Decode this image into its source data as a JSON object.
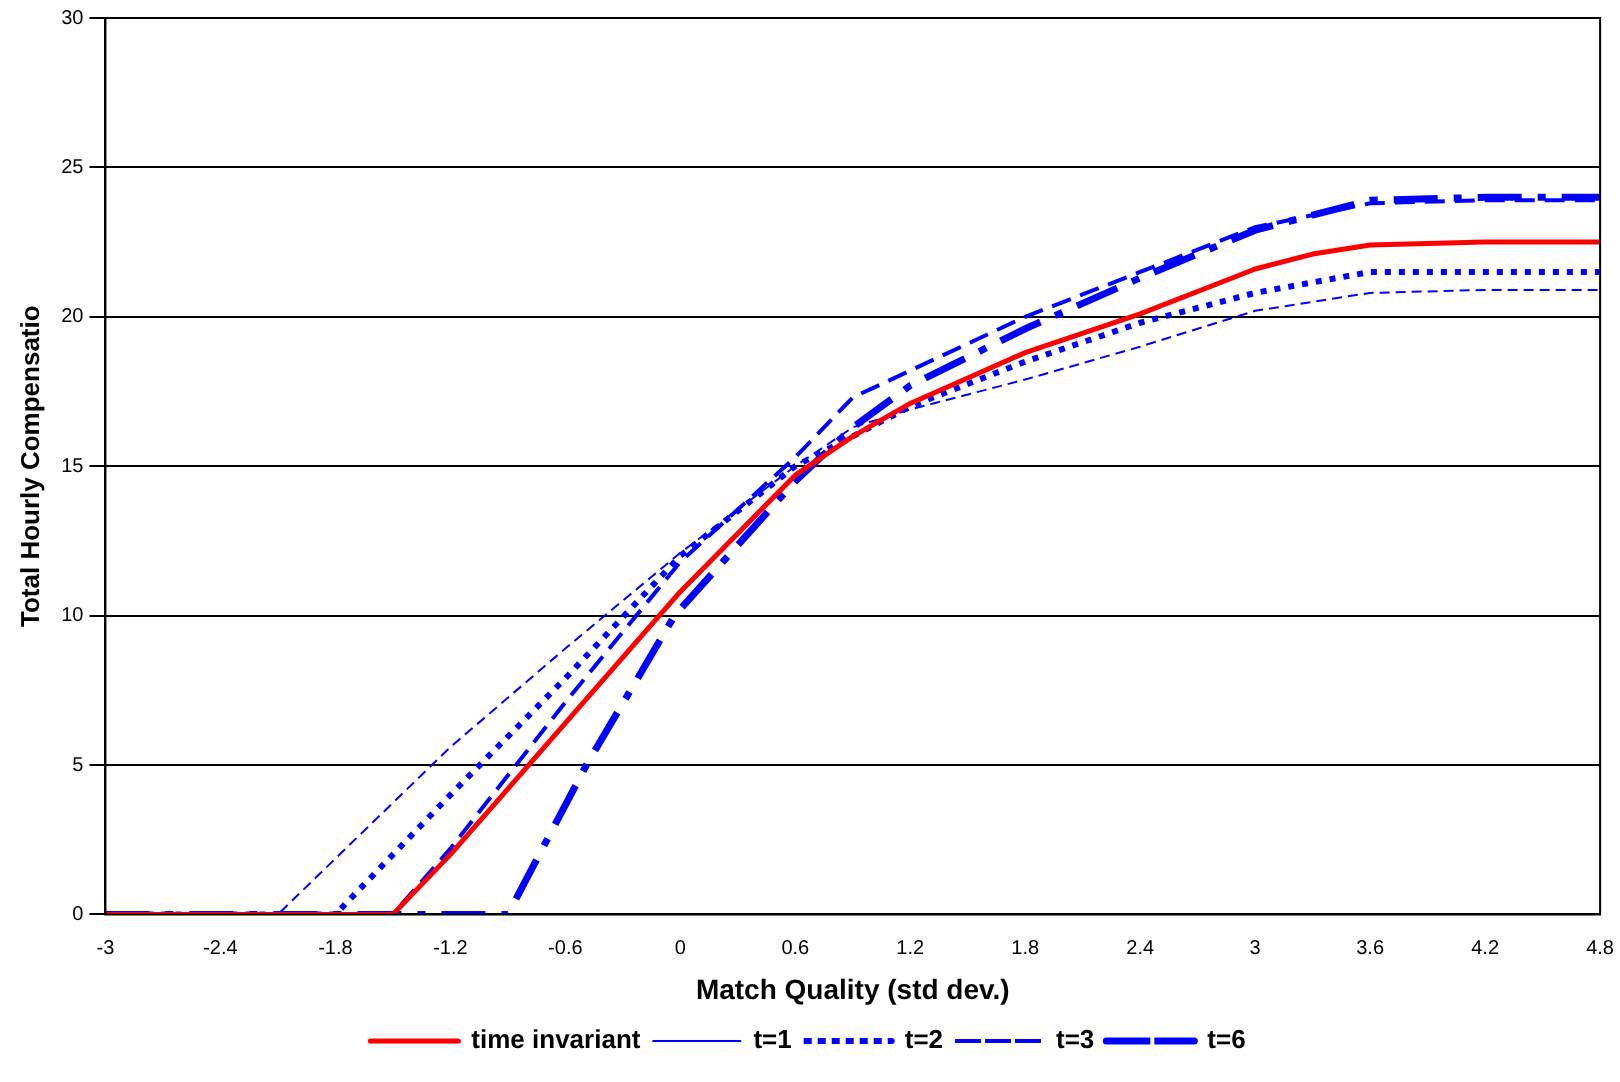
{
  "chart_data": {
    "type": "line",
    "xlabel": "Match Quality (std dev.)",
    "ylabel": "Total Hourly Compensatio",
    "xlim": [
      -3,
      4.8
    ],
    "xticks": [
      -3,
      -2.4,
      -1.8,
      -1.2,
      -0.6,
      0,
      0.6,
      1.2,
      1.8,
      2.4,
      3,
      3.6,
      4.2,
      4.8
    ],
    "ylim": [
      0,
      30
    ],
    "yticks": [
      0,
      5,
      10,
      15,
      20,
      25,
      30
    ],
    "grid": "y",
    "legend": "bottom",
    "marker": "none",
    "series": [
      {
        "name": "time invariant",
        "color": "#ff0000",
        "line_style": "solid",
        "x": [
          -3,
          -1.5,
          -1.2,
          -0.6,
          0,
          0.6,
          0.9,
          1.2,
          1.8,
          2.4,
          3,
          3.3,
          3.6,
          4.2,
          4.8
        ],
        "values": [
          0,
          0,
          2,
          6.4,
          10.8,
          14.7,
          16,
          17.1,
          18.8,
          20.1,
          21.6,
          22.1,
          22.4,
          22.5,
          22.5
        ]
      },
      {
        "name": "t=1",
        "color": "#0000ff",
        "line_style": "dashed",
        "x": [
          -3,
          -2.1,
          -1.2,
          -0.6,
          0,
          0.6,
          0.9,
          1.2,
          1.8,
          2.4,
          3,
          3.6,
          4.2,
          4.8
        ],
        "values": [
          0,
          0,
          5.6,
          8.9,
          12.1,
          15,
          16.3,
          16.9,
          17.9,
          19,
          20.2,
          20.8,
          20.9,
          20.9
        ]
      },
      {
        "name": "t=2",
        "color": "#0000ff",
        "line_style": "dotted",
        "x": [
          -3,
          -1.8,
          -1.2,
          -0.6,
          0,
          0.6,
          1.2,
          1.8,
          2.4,
          3,
          3.6,
          4.2,
          4.8
        ],
        "values": [
          0,
          0,
          4,
          7.9,
          12,
          15,
          17,
          18.5,
          19.8,
          20.8,
          21.5,
          21.5,
          21.5
        ]
      },
      {
        "name": "t=3",
        "color": "#0000ff",
        "line_style": "dashed",
        "x": [
          -3,
          -1.5,
          -1.2,
          -0.6,
          0,
          0.6,
          0.9,
          1.2,
          1.8,
          2.4,
          3,
          3.6,
          4.2,
          4.8
        ],
        "values": [
          0,
          0,
          2.2,
          7.1,
          11.8,
          15.3,
          17.3,
          18.2,
          20,
          21.5,
          23,
          23.8,
          23.9,
          23.9
        ]
      },
      {
        "name": "t=6",
        "color": "#0000ff",
        "line_style": "dashed",
        "x": [
          -3,
          -0.9,
          -0.49,
          -0.03,
          0.6,
          0.9,
          1.2,
          1.8,
          2.4,
          3,
          3.6,
          4.2,
          4.8
        ],
        "values": [
          0,
          0,
          5,
          10,
          14.5,
          16.3,
          17.7,
          19.6,
          21.3,
          22.9,
          23.9,
          24,
          24
        ]
      }
    ]
  }
}
